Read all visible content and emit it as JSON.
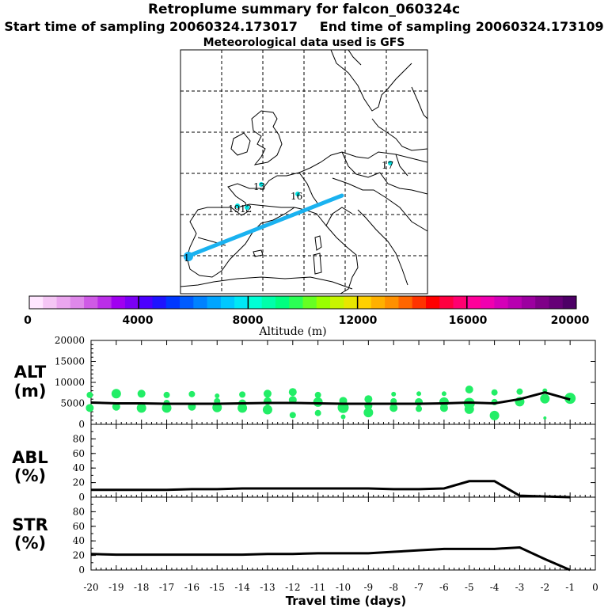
{
  "header": {
    "title": "Retroplume summary for falcon_060324c",
    "start_label": "Start time of sampling 20060324.173017",
    "end_label": "End time of sampling 20060324.173109",
    "met_label": "Meteorological data used is GFS"
  },
  "map": {
    "labels": [
      {
        "text": "1"
      },
      {
        "text": "13"
      },
      {
        "text": "16"
      },
      {
        "text": "17"
      },
      {
        "text": "19"
      },
      {
        "text": "12"
      }
    ],
    "plume_color": "#1ab2f0",
    "marker_color": "#00e0e0"
  },
  "colorbar": {
    "ticks": [
      "0",
      "4000",
      "8000",
      "12000",
      "16000",
      "20000"
    ],
    "label": "Altitude (m)",
    "colors": [
      "#ffe6ff",
      "#f5c6f5",
      "#eba6ef",
      "#df88ea",
      "#cf5ae6",
      "#bb2ee8",
      "#a000f0",
      "#7b00f5",
      "#4b00ff",
      "#1e14ff",
      "#0038ff",
      "#005cff",
      "#0082ff",
      "#00a5ff",
      "#00c8ff",
      "#00e8f5",
      "#00ffd5",
      "#00ffaa",
      "#00ff80",
      "#2bff55",
      "#66ff22",
      "#99ff00",
      "#c8f500",
      "#e8e600",
      "#ffd000",
      "#ffb000",
      "#ff9000",
      "#ff6600",
      "#ff3300",
      "#ff0000",
      "#ff0040",
      "#ff0070",
      "#ff009a",
      "#f000b0",
      "#d400b8",
      "#b800b0",
      "#9c00a0",
      "#7f0088",
      "#660077",
      "#4d0066"
    ]
  },
  "chart_data": [
    {
      "type": "line",
      "name": "ALT",
      "ylabel_line1": "ALT",
      "ylabel_line2": "(m)",
      "y_ticks": [
        "20000",
        "15000",
        "10000",
        "5000",
        "0"
      ],
      "ylim": [
        0,
        20000
      ],
      "x": [
        -20,
        -19,
        -18,
        -17,
        -16,
        -15,
        -14,
        -13,
        -12,
        -11,
        -10,
        -9,
        -8,
        -7,
        -6,
        -5,
        -4,
        -3,
        -2,
        -1
      ],
      "values": [
        5200,
        5000,
        5000,
        4900,
        4900,
        4900,
        5000,
        5100,
        5100,
        5000,
        4900,
        4900,
        4900,
        4900,
        5000,
        5200,
        5000,
        6000,
        7600,
        5900
      ],
      "cluster_color": "#22ee66",
      "clusters": [
        [
          -20.05,
          7000,
          4
        ],
        [
          -20.05,
          3900,
          5
        ],
        [
          -19.0,
          7300,
          6
        ],
        [
          -19.0,
          4200,
          5
        ],
        [
          -18.0,
          7300,
          5
        ],
        [
          -18.0,
          3900,
          6
        ],
        [
          -17.0,
          7000,
          4
        ],
        [
          -17.0,
          5100,
          4
        ],
        [
          -17.0,
          3900,
          6
        ],
        [
          -16.0,
          7200,
          4
        ],
        [
          -16.0,
          4200,
          5
        ],
        [
          -15.0,
          6800,
          3
        ],
        [
          -15.0,
          5500,
          4
        ],
        [
          -15.0,
          4000,
          6
        ],
        [
          -14.0,
          7100,
          4
        ],
        [
          -14.0,
          5000,
          5
        ],
        [
          -14.0,
          3900,
          6
        ],
        [
          -13.0,
          7300,
          5
        ],
        [
          -13.0,
          5500,
          5
        ],
        [
          -13.0,
          3500,
          6
        ],
        [
          -12.0,
          7700,
          5
        ],
        [
          -12.0,
          5800,
          5
        ],
        [
          -12.0,
          2200,
          4
        ],
        [
          -11.0,
          7000,
          4
        ],
        [
          -11.0,
          5300,
          6
        ],
        [
          -11.0,
          2700,
          4
        ],
        [
          -10.0,
          5600,
          5
        ],
        [
          -10.0,
          4000,
          7
        ],
        [
          -10.0,
          1800,
          3
        ],
        [
          -9.0,
          6000,
          5
        ],
        [
          -9.0,
          4400,
          5
        ],
        [
          -9.0,
          2800,
          6
        ],
        [
          -8.0,
          7200,
          3
        ],
        [
          -8.0,
          5500,
          4
        ],
        [
          -8.0,
          3900,
          5
        ],
        [
          -7.0,
          7300,
          3
        ],
        [
          -7.0,
          5300,
          5
        ],
        [
          -7.0,
          3700,
          4
        ],
        [
          -6.0,
          7300,
          3
        ],
        [
          -6.0,
          5300,
          6
        ],
        [
          -6.0,
          3900,
          5
        ],
        [
          -5.0,
          8300,
          5
        ],
        [
          -5.0,
          5000,
          7
        ],
        [
          -5.0,
          3600,
          6
        ],
        [
          -4.0,
          7600,
          4
        ],
        [
          -4.0,
          2100,
          6
        ],
        [
          -4.0,
          5300,
          4
        ],
        [
          -3.0,
          7800,
          4
        ],
        [
          -3.0,
          5400,
          6
        ],
        [
          -2.0,
          6100,
          6
        ],
        [
          -2.0,
          8000,
          3
        ],
        [
          -2.0,
          1500,
          2
        ],
        [
          -1.0,
          6200,
          7
        ]
      ]
    },
    {
      "type": "line",
      "name": "ABL",
      "ylabel_line1": "ABL",
      "ylabel_line2": "(%)",
      "y_ticks": [
        "80",
        "60",
        "40",
        "20",
        "0"
      ],
      "ylim": [
        0,
        100
      ],
      "x": [
        -20,
        -19,
        -18,
        -17,
        -16,
        -15,
        -14,
        -13,
        -12,
        -11,
        -10,
        -9,
        -8,
        -7,
        -6,
        -5,
        -4,
        -3,
        -2,
        -1
      ],
      "values": [
        10,
        10,
        10,
        10,
        11,
        11,
        12,
        12,
        12,
        12,
        12,
        12,
        11,
        11,
        12,
        22,
        22,
        2,
        1,
        0
      ]
    },
    {
      "type": "line",
      "name": "STR",
      "ylabel_line1": "STR",
      "ylabel_line2": "(%)",
      "y_ticks": [
        "80",
        "60",
        "40",
        "20",
        "0"
      ],
      "ylim": [
        0,
        100
      ],
      "x": [
        -20,
        -19,
        -18,
        -17,
        -16,
        -15,
        -14,
        -13,
        -12,
        -11,
        -10,
        -9,
        -8,
        -7,
        -6,
        -5,
        -4,
        -3,
        -2,
        -1
      ],
      "values": [
        22,
        21,
        21,
        21,
        21,
        21,
        21,
        22,
        22,
        23,
        23,
        23,
        25,
        27,
        29,
        29,
        29,
        31,
        15,
        0
      ]
    }
  ],
  "x_axis": {
    "tick_labels": [
      "-20",
      "-19",
      "-18",
      "-17",
      "-16",
      "-15",
      "-14",
      "-13",
      "-12",
      "-11",
      "-10",
      "-9",
      "-8",
      "-7",
      "-6",
      "-5",
      "-4",
      "-3",
      "-2",
      "-1",
      "0"
    ],
    "label": "Travel time (days)"
  }
}
